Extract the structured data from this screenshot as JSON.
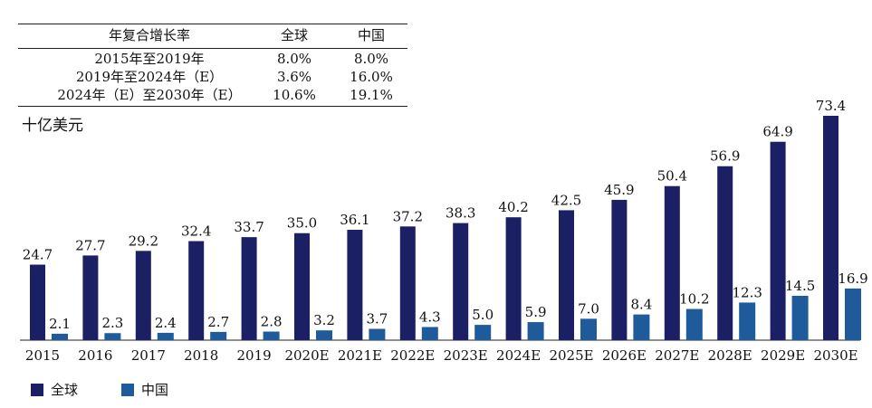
{
  "cagr_table": {
    "headers": [
      "年复合增长率",
      "全球",
      "中国"
    ],
    "rows": [
      {
        "label": "2015年至2019年",
        "global": "8.0%",
        "china": "8.0%"
      },
      {
        "label": "2019年至2024年（E）",
        "global": "3.6%",
        "china": "16.0%"
      },
      {
        "label": "2024年（E）至2030年（E）",
        "global": "10.6%",
        "china": "19.1%"
      }
    ]
  },
  "unit_label": "十亿美元",
  "colors": {
    "global": "#1b1f63",
    "china": "#1f5a9a"
  },
  "chart_data": {
    "type": "bar",
    "categories": [
      "2015",
      "2016",
      "2017",
      "2018",
      "2019",
      "2020E",
      "2021E",
      "2022E",
      "2023E",
      "2024E",
      "2025E",
      "2026E",
      "2027E",
      "2028E",
      "2029E",
      "2030E"
    ],
    "series": [
      {
        "name": "全球",
        "values": [
          24.7,
          27.7,
          29.2,
          32.4,
          33.7,
          35.0,
          36.1,
          37.2,
          38.3,
          40.2,
          42.5,
          45.9,
          50.4,
          56.9,
          64.9,
          73.4
        ]
      },
      {
        "name": "中国",
        "values": [
          2.1,
          2.3,
          2.4,
          2.7,
          2.8,
          3.2,
          3.7,
          4.3,
          5.0,
          5.9,
          7.0,
          8.4,
          10.2,
          12.3,
          14.5,
          16.9
        ]
      }
    ],
    "ylabel": "十亿美元",
    "legend_position": "bottom-left",
    "grid": false
  }
}
